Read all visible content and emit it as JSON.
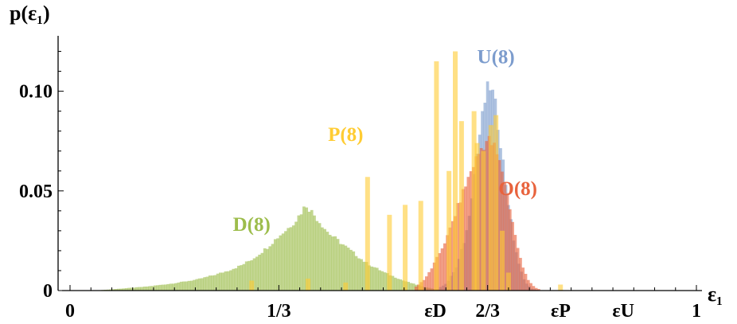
{
  "chart_data": {
    "type": "histogram",
    "xlabel": "ε₁",
    "ylabel": "p(ε₁)",
    "xlim": [
      0,
      1
    ],
    "ylim": [
      0,
      0.125
    ],
    "x_ticks": [
      {
        "value": 0,
        "label": "0"
      },
      {
        "value": 0.3333,
        "label": "1/3"
      },
      {
        "value": 0.5833,
        "label": "εD"
      },
      {
        "value": 0.6667,
        "label": "2/3"
      },
      {
        "value": 0.7833,
        "label": "εP"
      },
      {
        "value": 0.8833,
        "label": "εU"
      },
      {
        "value": 1,
        "label": "1"
      }
    ],
    "y_ticks": [
      {
        "value": 0,
        "label": "0"
      },
      {
        "value": 0.05,
        "label": "0.05"
      },
      {
        "value": 0.1,
        "label": "0.10"
      }
    ],
    "bin_width": 0.00417,
    "series": [
      {
        "name": "D(8)",
        "color": "#9dbd4c",
        "opacity": 0.62,
        "label_pos": [
          0.29,
          0.03
        ],
        "points": [
          [
            0.05,
            0.0003
          ],
          [
            0.08,
            0.001
          ],
          [
            0.12,
            0.002
          ],
          [
            0.16,
            0.0035
          ],
          [
            0.2,
            0.0055
          ],
          [
            0.23,
            0.008
          ],
          [
            0.25,
            0.01
          ],
          [
            0.27,
            0.0125
          ],
          [
            0.29,
            0.016
          ],
          [
            0.31,
            0.021
          ],
          [
            0.33,
            0.027
          ],
          [
            0.345,
            0.031
          ],
          [
            0.36,
            0.036
          ],
          [
            0.37,
            0.041
          ],
          [
            0.375,
            0.043
          ],
          [
            0.38,
            0.041
          ],
          [
            0.39,
            0.037
          ],
          [
            0.4,
            0.033
          ],
          [
            0.41,
            0.029
          ],
          [
            0.43,
            0.024
          ],
          [
            0.45,
            0.019
          ],
          [
            0.47,
            0.014
          ],
          [
            0.5,
            0.009
          ],
          [
            0.53,
            0.005
          ],
          [
            0.56,
            0.002
          ],
          [
            0.58,
            0.0008
          ],
          [
            0.6,
            0.0002
          ]
        ]
      },
      {
        "name": "U(8)",
        "color": "#7c9ccd",
        "opacity": 0.62,
        "label_pos": [
          0.68,
          0.114
        ],
        "points": [
          [
            0.585,
            0.0008
          ],
          [
            0.6,
            0.004
          ],
          [
            0.615,
            0.012
          ],
          [
            0.63,
            0.028
          ],
          [
            0.64,
            0.05
          ],
          [
            0.65,
            0.075
          ],
          [
            0.66,
            0.095
          ],
          [
            0.667,
            0.104
          ],
          [
            0.675,
            0.096
          ],
          [
            0.685,
            0.075
          ],
          [
            0.695,
            0.05
          ],
          [
            0.705,
            0.027
          ],
          [
            0.715,
            0.012
          ],
          [
            0.725,
            0.004
          ],
          [
            0.735,
            0.001
          ],
          [
            0.745,
            0.0002
          ]
        ]
      },
      {
        "name": "O(8)",
        "color": "#e8633d",
        "opacity": 0.62,
        "label_pos": [
          0.715,
          0.048
        ],
        "points": [
          [
            0.55,
            0.002
          ],
          [
            0.565,
            0.006
          ],
          [
            0.58,
            0.014
          ],
          [
            0.6,
            0.027
          ],
          [
            0.62,
            0.045
          ],
          [
            0.64,
            0.062
          ],
          [
            0.655,
            0.072
          ],
          [
            0.665,
            0.076
          ],
          [
            0.675,
            0.072
          ],
          [
            0.69,
            0.058
          ],
          [
            0.7,
            0.042
          ],
          [
            0.71,
            0.025
          ],
          [
            0.72,
            0.012
          ],
          [
            0.73,
            0.005
          ],
          [
            0.74,
            0.0015
          ],
          [
            0.75,
            0.0003
          ]
        ]
      },
      {
        "name": "P(8)",
        "color": "#ffcc33",
        "opacity": 0.6,
        "label_pos": [
          0.44,
          0.075
        ],
        "spikes": [
          [
            0.29,
            0.005
          ],
          [
            0.38,
            0.006
          ],
          [
            0.44,
            0.004
          ],
          [
            0.475,
            0.057
          ],
          [
            0.51,
            0.038
          ],
          [
            0.535,
            0.043
          ],
          [
            0.56,
            0.045
          ],
          [
            0.585,
            0.115
          ],
          [
            0.605,
            0.06
          ],
          [
            0.615,
            0.12
          ],
          [
            0.625,
            0.085
          ],
          [
            0.645,
            0.09
          ],
          [
            0.65,
            0.074
          ],
          [
            0.66,
            0.07
          ],
          [
            0.672,
            0.083
          ],
          [
            0.68,
            0.088
          ],
          [
            0.69,
            0.03
          ],
          [
            0.7,
            0.009
          ],
          [
            0.783,
            0.003
          ]
        ]
      }
    ]
  }
}
